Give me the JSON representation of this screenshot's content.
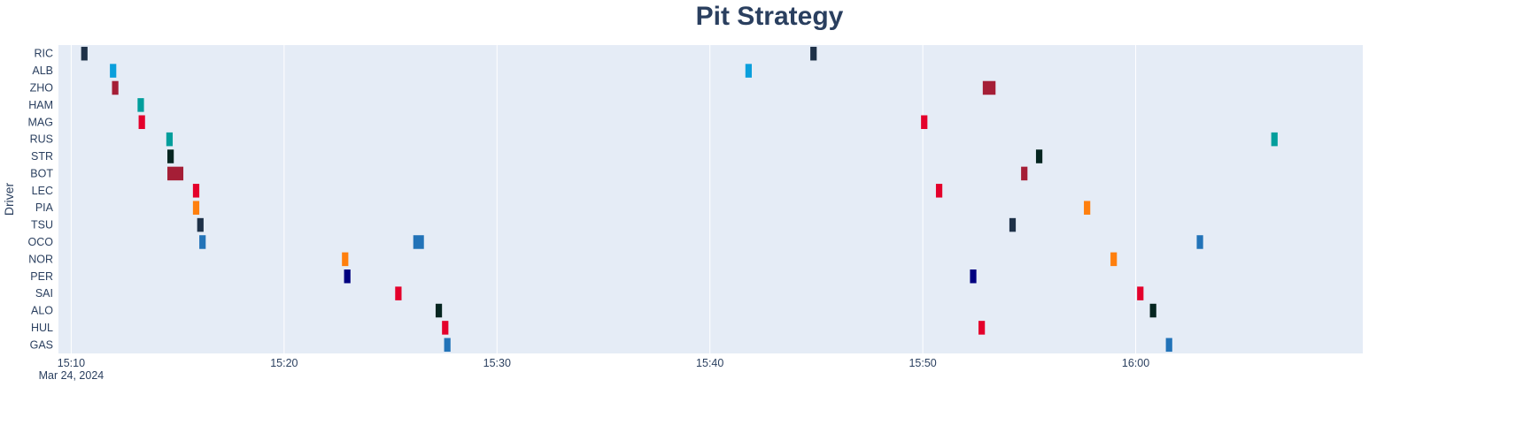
{
  "chart_data": {
    "type": "timeline",
    "title": "Pit Strategy",
    "xlabel": "",
    "ylabel": "Driver",
    "date_label": "Mar 24, 2024",
    "x_ticks": [
      "15:10",
      "15:20",
      "15:30",
      "15:40",
      "15:50",
      "16:00"
    ],
    "xlim": [
      "15:09:24",
      "16:10:40"
    ],
    "grid": true,
    "legend": "none",
    "plot_bg": "#e5ecf6",
    "drivers": [
      "RIC",
      "ALB",
      "ZHO",
      "HAM",
      "MAG",
      "RUS",
      "STR",
      "BOT",
      "LEC",
      "PIA",
      "TSU",
      "OCO",
      "NOR",
      "PER",
      "SAI",
      "ALO",
      "HUL",
      "GAS"
    ],
    "stops": [
      {
        "driver": "RIC",
        "start": "15:10:28",
        "end": "15:10:46",
        "color": "#1e3148"
      },
      {
        "driver": "RIC",
        "start": "15:44:43",
        "end": "15:45:01",
        "color": "#1e3148"
      },
      {
        "driver": "ALB",
        "start": "15:11:49",
        "end": "15:12:07",
        "color": "#0a9fdc"
      },
      {
        "driver": "ALB",
        "start": "15:41:40",
        "end": "15:41:58",
        "color": "#0a9fdc"
      },
      {
        "driver": "ZHO",
        "start": "15:11:55",
        "end": "15:12:13",
        "color": "#a51e36"
      },
      {
        "driver": "ZHO",
        "start": "15:52:49",
        "end": "15:53:25",
        "color": "#a51e36"
      },
      {
        "driver": "HAM",
        "start": "15:13:07",
        "end": "15:13:25",
        "color": "#019e9c"
      },
      {
        "driver": "MAG",
        "start": "15:13:10",
        "end": "15:13:28",
        "color": "#e4002b"
      },
      {
        "driver": "MAG",
        "start": "15:49:55",
        "end": "15:50:13",
        "color": "#e4002b"
      },
      {
        "driver": "RUS",
        "start": "15:14:28",
        "end": "15:14:46",
        "color": "#019e9c"
      },
      {
        "driver": "RUS",
        "start": "16:06:22",
        "end": "16:06:40",
        "color": "#019e9c"
      },
      {
        "driver": "STR",
        "start": "15:14:31",
        "end": "15:14:49",
        "color": "#052520"
      },
      {
        "driver": "STR",
        "start": "15:55:19",
        "end": "15:55:37",
        "color": "#052520"
      },
      {
        "driver": "BOT",
        "start": "15:14:31",
        "end": "15:15:16",
        "color": "#a51e36"
      },
      {
        "driver": "BOT",
        "start": "15:54:37",
        "end": "15:54:55",
        "color": "#a51e36"
      },
      {
        "driver": "LEC",
        "start": "15:15:43",
        "end": "15:16:01",
        "color": "#e4002b"
      },
      {
        "driver": "LEC",
        "start": "15:50:37",
        "end": "15:50:55",
        "color": "#e4002b"
      },
      {
        "driver": "PIA",
        "start": "15:15:43",
        "end": "15:16:01",
        "color": "#ff7f0e"
      },
      {
        "driver": "PIA",
        "start": "15:57:34",
        "end": "15:57:52",
        "color": "#ff7f0e"
      },
      {
        "driver": "TSU",
        "start": "15:15:55",
        "end": "15:16:13",
        "color": "#1e3148"
      },
      {
        "driver": "TSU",
        "start": "15:54:04",
        "end": "15:54:22",
        "color": "#1e3148"
      },
      {
        "driver": "OCO",
        "start": "15:16:01",
        "end": "15:16:19",
        "color": "#2273b8"
      },
      {
        "driver": "OCO",
        "start": "15:26:04",
        "end": "15:26:34",
        "color": "#2273b8"
      },
      {
        "driver": "OCO",
        "start": "16:02:52",
        "end": "16:03:10",
        "color": "#2273b8"
      },
      {
        "driver": "NOR",
        "start": "15:22:43",
        "end": "15:23:01",
        "color": "#ff7f0e"
      },
      {
        "driver": "NOR",
        "start": "15:58:49",
        "end": "15:59:07",
        "color": "#ff7f0e"
      },
      {
        "driver": "PER",
        "start": "15:22:49",
        "end": "15:23:07",
        "color": "#000080"
      },
      {
        "driver": "PER",
        "start": "15:52:13",
        "end": "15:52:31",
        "color": "#000080"
      },
      {
        "driver": "SAI",
        "start": "15:25:13",
        "end": "15:25:31",
        "color": "#e4002b"
      },
      {
        "driver": "SAI",
        "start": "16:00:04",
        "end": "16:00:22",
        "color": "#e4002b"
      },
      {
        "driver": "ALO",
        "start": "15:27:07",
        "end": "15:27:25",
        "color": "#052520"
      },
      {
        "driver": "ALO",
        "start": "16:00:40",
        "end": "16:00:58",
        "color": "#052520"
      },
      {
        "driver": "HUL",
        "start": "15:27:25",
        "end": "15:27:43",
        "color": "#e4002b"
      },
      {
        "driver": "HUL",
        "start": "15:52:37",
        "end": "15:52:55",
        "color": "#e4002b"
      },
      {
        "driver": "GAS",
        "start": "15:27:31",
        "end": "15:27:49",
        "color": "#2273b8"
      },
      {
        "driver": "GAS",
        "start": "16:01:25",
        "end": "16:01:43",
        "color": "#2273b8"
      }
    ]
  }
}
